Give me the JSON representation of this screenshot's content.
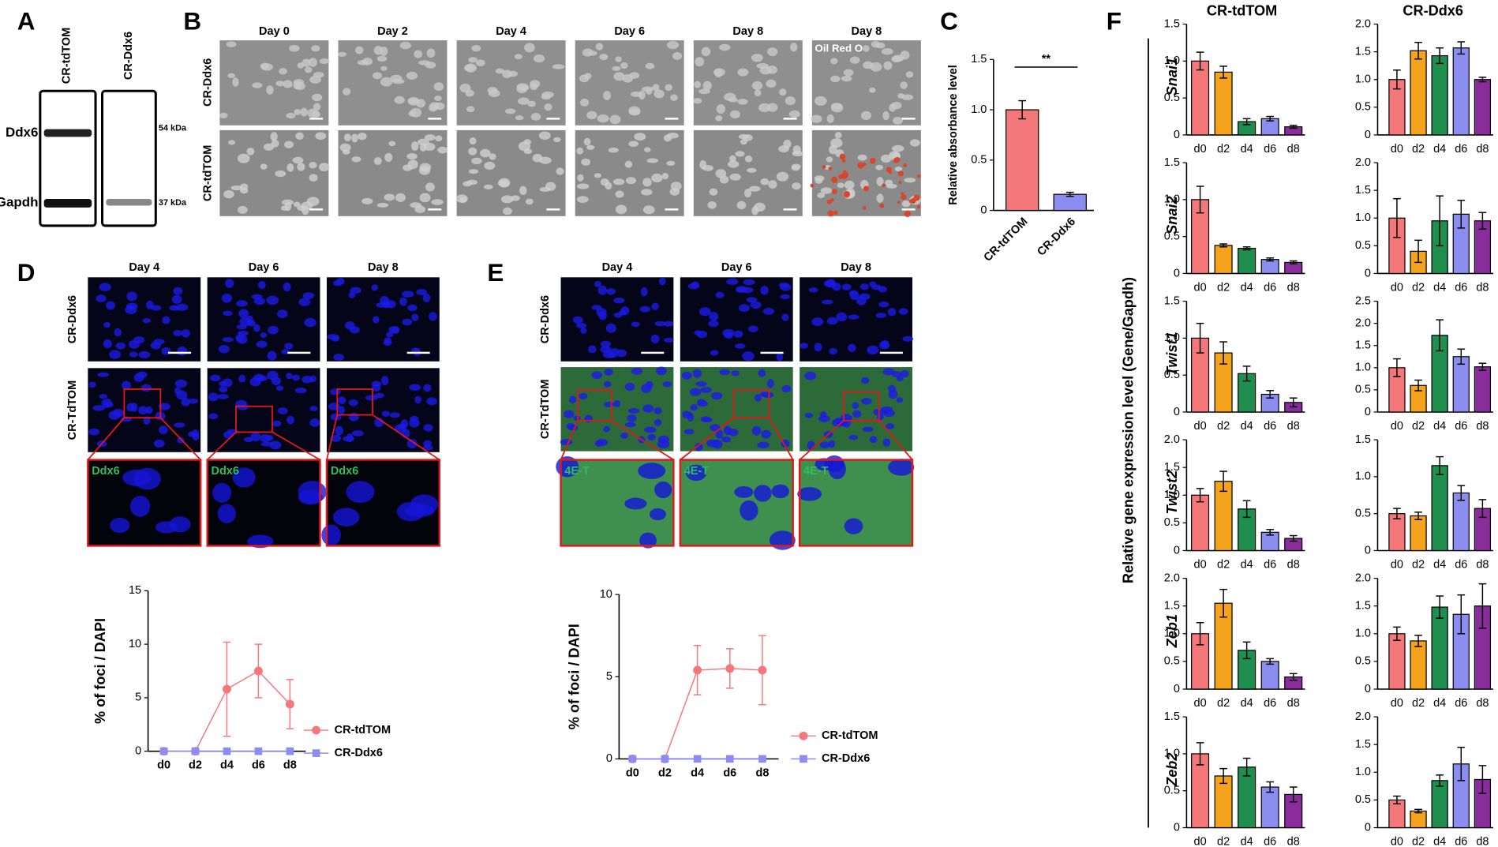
{
  "panel_labels": [
    "A",
    "B",
    "C",
    "D",
    "E",
    "F"
  ],
  "panel_a": {
    "columns": [
      "CR-tdTOM",
      "CR-Ddx6"
    ],
    "rows": [
      "Ddx6",
      "Gapdh"
    ],
    "markers": [
      "54 kDa",
      "37 kDa"
    ]
  },
  "panel_b": {
    "columns": [
      "Day 0",
      "Day 2",
      "Day 4",
      "Day 6",
      "Day 8",
      "Day 8"
    ],
    "rows": [
      "CR-Ddx6",
      "CR-tdTOM"
    ],
    "stain": "Oil Red O"
  },
  "panel_d": {
    "columns": [
      "Day 4",
      "Day 6",
      "Day 8"
    ],
    "rows": [
      "CR-Ddx6",
      "CR-TdTOM"
    ],
    "zoom_label": "Ddx6"
  },
  "panel_e": {
    "columns": [
      "Day 4",
      "Day 6",
      "Day 8"
    ],
    "rows": [
      "CR-Ddx6",
      "CR-TdTOM"
    ],
    "zoom_label": "4E-T"
  },
  "panel_f": {
    "columns": [
      "CR-tdTOM",
      "CR-Ddx6"
    ],
    "ylabel": "Relative gene expression level (Gene/Gapdh)",
    "genes": [
      "Snai1",
      "Snai2",
      "Twist1",
      "Twist2",
      "Zeb1",
      "Zeb2"
    ]
  },
  "chart_data": [
    {
      "type": "bar",
      "ylabel": "Relative absorbance level",
      "annotation": "**",
      "categories": [
        "CR-tdTOM",
        "CR-Ddx6"
      ],
      "values": [
        1.0,
        0.16
      ],
      "errors": [
        0.09,
        0.02
      ],
      "colors": [
        "#f4777a",
        "#8b8ef0"
      ],
      "ylim": [
        0,
        1.5
      ],
      "yticks": [
        0,
        0.5,
        {
          "value": 1,
          "label": "1.0"
        },
        1.5
      ]
    },
    {
      "type": "line",
      "ylabel": "% of foci / DAPI",
      "categories": [
        "d0",
        "d2",
        "d4",
        "d6",
        "d8"
      ],
      "ylim": [
        0,
        15
      ],
      "yticks": [
        0,
        5,
        10,
        15
      ],
      "legend": "right",
      "series": [
        {
          "name": "CR-tdTOM",
          "color": "#f4777a",
          "marker": "circle",
          "values": [
            0,
            0,
            5.8,
            7.5,
            4.4
          ],
          "errors": [
            0,
            0,
            4.4,
            2.5,
            2.3
          ]
        },
        {
          "name": "CR-Ddx6",
          "color": "#8b8ef0",
          "marker": "square",
          "values": [
            0,
            0,
            0,
            0,
            0
          ]
        }
      ]
    },
    {
      "type": "line",
      "ylabel": "% of foci / DAPI",
      "categories": [
        "d0",
        "d2",
        "d4",
        "d6",
        "d8"
      ],
      "ylim": [
        0,
        10
      ],
      "yticks": [
        0,
        5,
        10
      ],
      "legend": "right",
      "series": [
        {
          "name": "CR-tdTOM",
          "color": "#f4777a",
          "marker": "circle",
          "values": [
            0,
            0,
            5.4,
            5.5,
            5.4
          ],
          "errors": [
            0,
            0,
            1.5,
            1.2,
            2.1
          ]
        },
        {
          "name": "CR-Ddx6",
          "color": "#8b8ef0",
          "marker": "square",
          "values": [
            0,
            0,
            0,
            0,
            0
          ]
        }
      ]
    },
    {
      "type": "bar",
      "categories": [
        "d0",
        "d2",
        "d4",
        "d6",
        "d8"
      ],
      "colors": [
        "#f4777a",
        "#f5a21d",
        "#1e8f4e",
        "#8b8ef0",
        "#8a2c9c"
      ],
      "ylim": [
        0,
        1.5
      ],
      "yticks": [
        0,
        0.5,
        {
          "value": 1,
          "label": "1.0"
        },
        1.5
      ],
      "values": [
        1.0,
        0.85,
        0.18,
        0.22,
        0.11
      ],
      "errors": [
        0.12,
        0.08,
        0.04,
        0.03,
        0.02
      ]
    },
    {
      "type": "bar",
      "categories": [
        "d0",
        "d2",
        "d4",
        "d6",
        "d8"
      ],
      "colors": [
        "#f4777a",
        "#f5a21d",
        "#1e8f4e",
        "#8b8ef0",
        "#8a2c9c"
      ],
      "ylim": [
        0,
        2
      ],
      "yticks": [
        0,
        0.5,
        {
          "value": 1,
          "label": "1.0"
        },
        1.5,
        {
          "value": 2,
          "label": "2.0"
        }
      ],
      "values": [
        1.0,
        1.52,
        1.43,
        1.57,
        1.0
      ],
      "errors": [
        0.17,
        0.15,
        0.14,
        0.11,
        0.04
      ]
    },
    {
      "type": "bar",
      "categories": [
        "d0",
        "d2",
        "d4",
        "d6",
        "d8"
      ],
      "colors": [
        "#f4777a",
        "#f5a21d",
        "#1e8f4e",
        "#8b8ef0",
        "#8a2c9c"
      ],
      "ylim": [
        0,
        1.5
      ],
      "yticks": [
        0,
        0.5,
        {
          "value": 1,
          "label": "1.0"
        },
        1.5
      ],
      "values": [
        1.0,
        0.38,
        0.34,
        0.19,
        0.15
      ],
      "errors": [
        0.18,
        0.02,
        0.02,
        0.02,
        0.02
      ]
    },
    {
      "type": "bar",
      "categories": [
        "d0",
        "d2",
        "d4",
        "d6",
        "d8"
      ],
      "colors": [
        "#f4777a",
        "#f5a21d",
        "#1e8f4e",
        "#8b8ef0",
        "#8a2c9c"
      ],
      "ylim": [
        0,
        2
      ],
      "yticks": [
        0,
        0.5,
        {
          "value": 1,
          "label": "1.0"
        },
        1.5,
        {
          "value": 2,
          "label": "2.0"
        }
      ],
      "values": [
        1.0,
        0.4,
        0.95,
        1.07,
        0.95
      ],
      "errors": [
        0.35,
        0.2,
        0.45,
        0.25,
        0.15
      ]
    },
    {
      "type": "bar",
      "categories": [
        "d0",
        "d2",
        "d4",
        "d6",
        "d8"
      ],
      "colors": [
        "#f4777a",
        "#f5a21d",
        "#1e8f4e",
        "#8b8ef0",
        "#8a2c9c"
      ],
      "ylim": [
        0,
        1.5
      ],
      "yticks": [
        0,
        0.5,
        {
          "value": 1,
          "label": "1.0"
        },
        1.5
      ],
      "values": [
        1.0,
        0.8,
        0.52,
        0.24,
        0.13
      ],
      "errors": [
        0.2,
        0.15,
        0.1,
        0.05,
        0.06
      ]
    },
    {
      "type": "bar",
      "categories": [
        "d0",
        "d2",
        "d4",
        "d6",
        "d8"
      ],
      "colors": [
        "#f4777a",
        "#f5a21d",
        "#1e8f4e",
        "#8b8ef0",
        "#8a2c9c"
      ],
      "ylim": [
        0,
        2.5
      ],
      "yticks": [
        0,
        0.5,
        {
          "value": 1,
          "label": "1.0"
        },
        1.5,
        {
          "value": 2,
          "label": "2.0"
        },
        2.5
      ],
      "values": [
        1.0,
        0.6,
        1.73,
        1.25,
        1.02
      ],
      "errors": [
        0.2,
        0.12,
        0.35,
        0.17,
        0.08
      ]
    },
    {
      "type": "bar",
      "categories": [
        "d0",
        "d2",
        "d4",
        "d6",
        "d8"
      ],
      "colors": [
        "#f4777a",
        "#f5a21d",
        "#1e8f4e",
        "#8b8ef0",
        "#8a2c9c"
      ],
      "ylim": [
        0,
        2
      ],
      "yticks": [
        0,
        0.5,
        {
          "value": 1,
          "label": "1.0"
        },
        1.5,
        {
          "value": 2,
          "label": "2.0"
        }
      ],
      "values": [
        1.0,
        1.25,
        0.75,
        0.33,
        0.22
      ],
      "errors": [
        0.12,
        0.18,
        0.15,
        0.05,
        0.05
      ]
    },
    {
      "type": "bar",
      "categories": [
        "d0",
        "d2",
        "d4",
        "d6",
        "d8"
      ],
      "colors": [
        "#f4777a",
        "#f5a21d",
        "#1e8f4e",
        "#8b8ef0",
        "#8a2c9c"
      ],
      "ylim": [
        0,
        1.5
      ],
      "yticks": [
        0,
        0.5,
        {
          "value": 1,
          "label": "1.0"
        },
        1.5
      ],
      "values": [
        0.5,
        0.47,
        1.15,
        0.78,
        0.57
      ],
      "errors": [
        0.07,
        0.05,
        0.12,
        0.1,
        0.12
      ]
    },
    {
      "type": "bar",
      "categories": [
        "d0",
        "d2",
        "d4",
        "d6",
        "d8"
      ],
      "colors": [
        "#f4777a",
        "#f5a21d",
        "#1e8f4e",
        "#8b8ef0",
        "#8a2c9c"
      ],
      "ylim": [
        0,
        2
      ],
      "yticks": [
        0,
        0.5,
        {
          "value": 1,
          "label": "1.0"
        },
        1.5,
        {
          "value": 2,
          "label": "2.0"
        }
      ],
      "values": [
        1.0,
        1.55,
        0.7,
        0.5,
        0.22
      ],
      "errors": [
        0.2,
        0.25,
        0.15,
        0.05,
        0.06
      ]
    },
    {
      "type": "bar",
      "categories": [
        "d0",
        "d2",
        "d4",
        "d6",
        "d8"
      ],
      "colors": [
        "#f4777a",
        "#f5a21d",
        "#1e8f4e",
        "#8b8ef0",
        "#8a2c9c"
      ],
      "ylim": [
        0,
        2
      ],
      "yticks": [
        0,
        0.5,
        {
          "value": 1,
          "label": "1.0"
        },
        1.5,
        {
          "value": 2,
          "label": "2.0"
        }
      ],
      "values": [
        1.0,
        0.87,
        1.48,
        1.35,
        1.5
      ],
      "errors": [
        0.12,
        0.1,
        0.2,
        0.35,
        0.4
      ]
    },
    {
      "type": "bar",
      "categories": [
        "d0",
        "d2",
        "d4",
        "d6",
        "d8"
      ],
      "colors": [
        "#f4777a",
        "#f5a21d",
        "#1e8f4e",
        "#8b8ef0",
        "#8a2c9c"
      ],
      "ylim": [
        0,
        1.5
      ],
      "yticks": [
        0,
        0.5,
        {
          "value": 1,
          "label": "1.0"
        },
        1.5
      ],
      "values": [
        1.0,
        0.7,
        0.82,
        0.55,
        0.45
      ],
      "errors": [
        0.15,
        0.1,
        0.12,
        0.07,
        0.1
      ]
    },
    {
      "type": "bar",
      "categories": [
        "d0",
        "d2",
        "d4",
        "d6",
        "d8"
      ],
      "colors": [
        "#f4777a",
        "#f5a21d",
        "#1e8f4e",
        "#8b8ef0",
        "#8a2c9c"
      ],
      "ylim": [
        0,
        2
      ],
      "yticks": [
        0,
        0.5,
        {
          "value": 1,
          "label": "1.0"
        },
        1.5,
        {
          "value": 2,
          "label": "2.0"
        }
      ],
      "values": [
        0.5,
        0.3,
        0.85,
        1.15,
        0.87
      ],
      "errors": [
        0.07,
        0.03,
        0.1,
        0.3,
        0.25
      ]
    }
  ]
}
